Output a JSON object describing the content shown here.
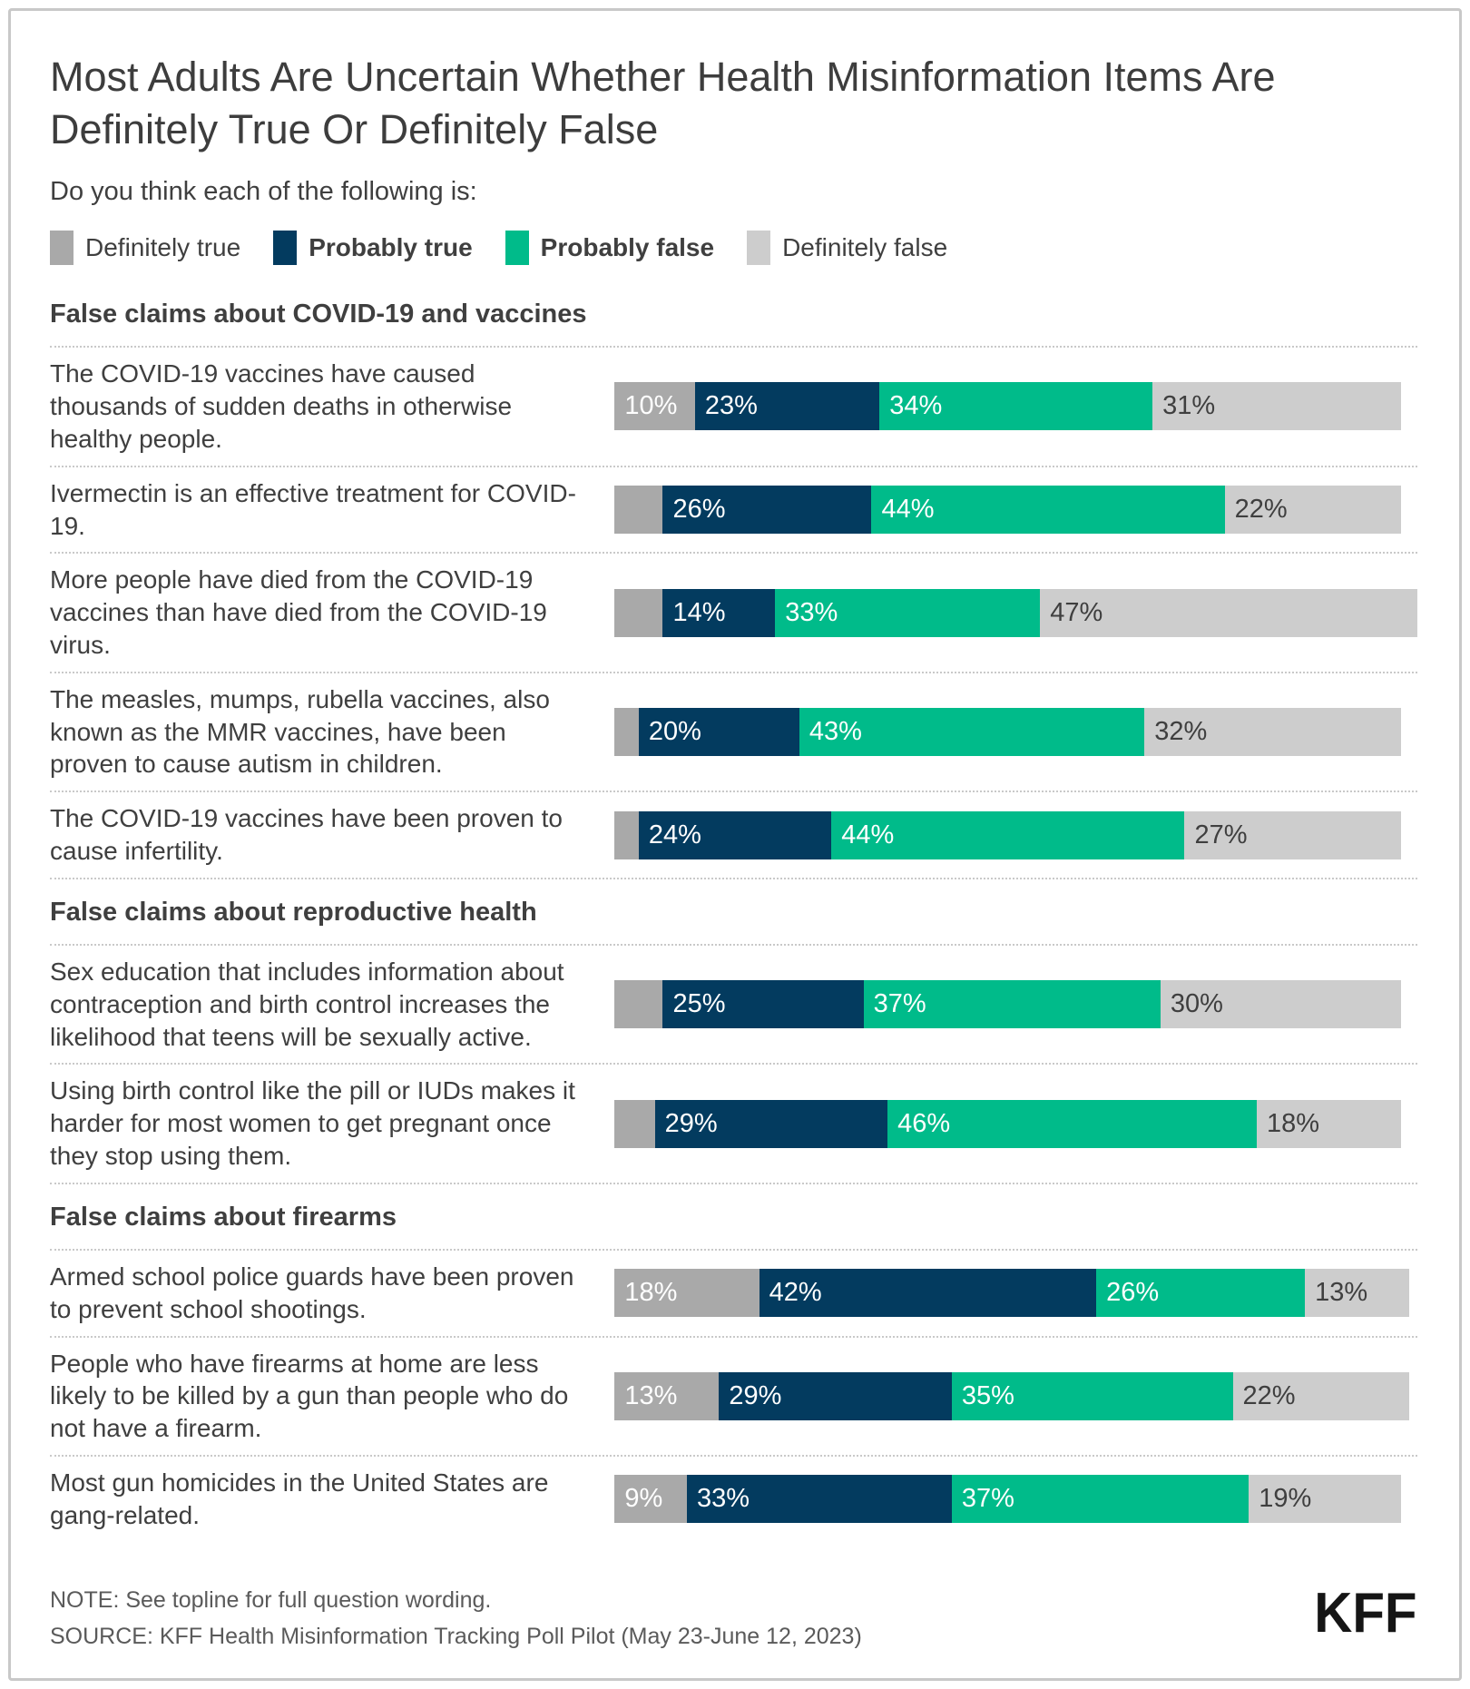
{
  "title": "Most Adults Are Uncertain Whether Health Misinformation Items Are Definitely True Or Definitely False",
  "subtitle": "Do you think each of the following is:",
  "legend": [
    {
      "label": "Definitely true",
      "color": "#a9a9a9",
      "bold": false
    },
    {
      "label": "Probably true",
      "color": "#033b5f",
      "bold": true
    },
    {
      "label": "Probably false",
      "color": "#00bb8a",
      "bold": true
    },
    {
      "label": "Definitely false",
      "color": "#cdcdcd",
      "bold": false
    }
  ],
  "colors": {
    "definitely_true": "#a9a9a9",
    "probably_true": "#033b5f",
    "probably_false": "#00bb8a",
    "definitely_false": "#cdcdcd",
    "segment_label_on_dark": "#ffffff",
    "segment_label_on_light": "#3f3f3f",
    "separator": "#c9c9c9"
  },
  "chart_data": {
    "type": "bar",
    "orientation": "horizontal",
    "stacked": true,
    "unit": "%",
    "xlim": [
      0,
      100
    ],
    "grid": false,
    "legend_position": "top",
    "series_names": [
      "Definitely true",
      "Probably true",
      "Probably false",
      "Definitely false"
    ],
    "sections": [
      {
        "header": "False claims about COVID-19 and vaccines",
        "rows": [
          {
            "label": "The COVID-19 vaccines have caused thousands of sudden deaths in otherwise healthy people.",
            "values": [
              10,
              23,
              34,
              31
            ],
            "labels": [
              "10%",
              "23%",
              "34%",
              "31%"
            ]
          },
          {
            "label": "Ivermectin is an effective treatment for COVID-19.",
            "values": [
              6,
              26,
              44,
              22
            ],
            "labels": [
              "",
              "26%",
              "44%",
              "22%"
            ]
          },
          {
            "label": "More people have died from the COVID-19 vaccines than have died from the COVID-19 virus.",
            "values": [
              6,
              14,
              33,
              47
            ],
            "labels": [
              "",
              "14%",
              "33%",
              "47%"
            ]
          },
          {
            "label": "The measles, mumps, rubella vaccines, also known as the MMR vaccines, have been proven to cause autism in children.",
            "values": [
              3,
              20,
              43,
              32
            ],
            "labels": [
              "",
              "20%",
              "43%",
              "32%"
            ]
          },
          {
            "label": "The COVID-19 vaccines have been proven to cause infertility.",
            "values": [
              3,
              24,
              44,
              27
            ],
            "labels": [
              "",
              "24%",
              "44%",
              "27%"
            ]
          }
        ]
      },
      {
        "header": "False claims about reproductive health",
        "rows": [
          {
            "label": "Sex education that includes information about contraception and birth control increases the likelihood that teens will be sexually active.",
            "values": [
              6,
              25,
              37,
              30
            ],
            "labels": [
              "",
              "25%",
              "37%",
              "30%"
            ]
          },
          {
            "label": "Using birth control like the pill or IUDs makes it harder for most women to get pregnant once they stop using them.",
            "values": [
              5,
              29,
              46,
              18
            ],
            "labels": [
              "",
              "29%",
              "46%",
              "18%"
            ]
          }
        ]
      },
      {
        "header": "False claims about firearms",
        "rows": [
          {
            "label": "Armed school police guards have been proven to prevent school shootings.",
            "values": [
              18,
              42,
              26,
              13
            ],
            "labels": [
              "18%",
              "42%",
              "26%",
              "13%"
            ]
          },
          {
            "label": "People who have firearms at home are less likely to be killed by a gun than people who do not have a firearm.",
            "values": [
              13,
              29,
              35,
              22
            ],
            "labels": [
              "13%",
              "29%",
              "35%",
              "22%"
            ]
          },
          {
            "label": "Most gun homicides in the United States are gang-related.",
            "values": [
              9,
              33,
              37,
              19
            ],
            "labels": [
              "9%",
              "33%",
              "37%",
              "19%"
            ]
          }
        ]
      }
    ]
  },
  "footer": {
    "note": "NOTE: See topline for full question wording.",
    "source": "SOURCE: KFF Health Misinformation Tracking Poll Pilot (May 23-June 12, 2023)",
    "logo": "KFF"
  }
}
